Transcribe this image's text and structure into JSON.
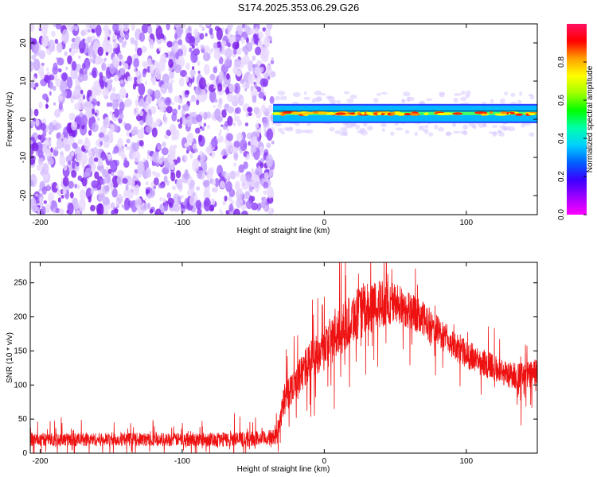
{
  "figure": {
    "title": "S174.2025.353.06.29.G26"
  },
  "chart_data": [
    {
      "type": "heatmap",
      "name": "spectrogram",
      "xlabel": "Height of straight line (km)",
      "ylabel": "Frequency (Hz)",
      "xlim": [
        -207,
        150
      ],
      "ylim": [
        -25,
        25
      ],
      "xticks": [
        -200,
        -100,
        0,
        100
      ],
      "yticks": [
        -20,
        -10,
        0,
        10,
        20
      ],
      "noise_region_x": [
        -207,
        -36
      ],
      "signal_region_x": [
        -36,
        150
      ],
      "signal_freq_band_hz": [
        -1,
        4
      ],
      "colorbar": {
        "label": "Normalized spectral amplitude",
        "range": [
          0,
          1
        ],
        "ticks": [
          0.0,
          0.2,
          0.4,
          0.6,
          0.8
        ],
        "tick_labels": [
          "0.0",
          "0.2",
          "0.4",
          "0.6",
          "0.8"
        ],
        "colors": [
          "#ff00ff",
          "#a000ff",
          "#3a00ff",
          "#0060ff",
          "#00d0ff",
          "#00ffaa",
          "#00ff00",
          "#a0ff00",
          "#ffff00",
          "#ffa000",
          "#ff0000",
          "#ff1060"
        ]
      }
    },
    {
      "type": "line",
      "name": "snr",
      "xlabel": "Height of straight line (km)",
      "ylabel": "SNR (10 * v/v)",
      "xlim": [
        -207,
        150
      ],
      "ylim": [
        0,
        280
      ],
      "xticks": [
        -200,
        -100,
        0,
        100
      ],
      "yticks": [
        0,
        50,
        100,
        150,
        200,
        250
      ],
      "line_color": "#ee1111",
      "envelope": {
        "x": [
          -207,
          -180,
          -150,
          -100,
          -60,
          -40,
          -33,
          -28,
          -22,
          -15,
          -8,
          0,
          10,
          20,
          30,
          40,
          50,
          60,
          70,
          80,
          90,
          100,
          110,
          120,
          130,
          140,
          150
        ],
        "mean": [
          20,
          20,
          20,
          20,
          20,
          22,
          25,
          80,
          100,
          120,
          140,
          155,
          175,
          200,
          210,
          220,
          220,
          210,
          195,
          178,
          160,
          145,
          135,
          125,
          115,
          112,
          118
        ],
        "spread": [
          14,
          14,
          14,
          14,
          16,
          16,
          18,
          35,
          35,
          40,
          45,
          50,
          50,
          55,
          55,
          50,
          45,
          40,
          38,
          35,
          30,
          30,
          30,
          28,
          28,
          30,
          30
        ]
      }
    }
  ]
}
